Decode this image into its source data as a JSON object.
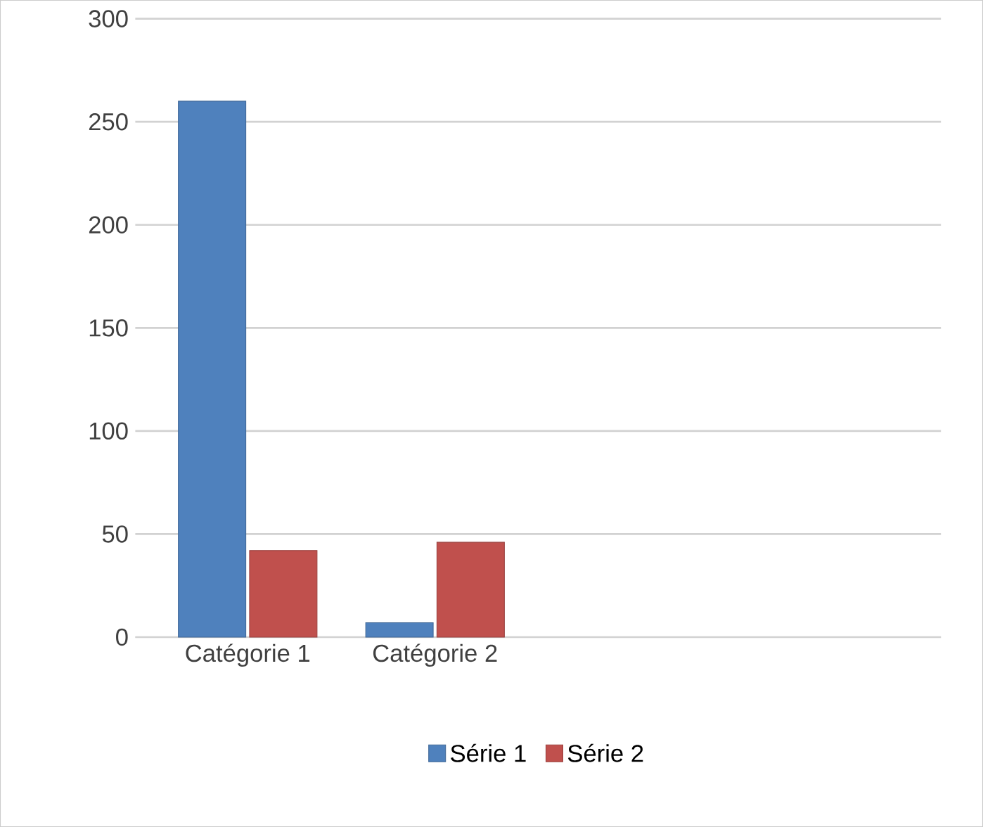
{
  "chart_data": {
    "type": "bar",
    "categories": [
      "Catégorie 1",
      "Catégorie 2"
    ],
    "series": [
      {
        "name": "Série 1",
        "color": "#4f81bd",
        "values": [
          260,
          7
        ]
      },
      {
        "name": "Série 2",
        "color": "#c0504d",
        "values": [
          42,
          46
        ]
      }
    ],
    "ylim": [
      0,
      300
    ],
    "yticks": [
      0,
      50,
      100,
      150,
      200,
      250,
      300
    ],
    "grid": "y",
    "legend": "bottom"
  }
}
